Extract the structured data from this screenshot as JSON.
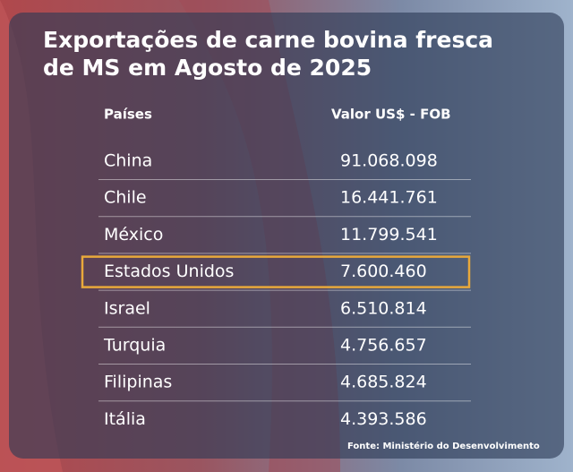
{
  "title": [
    "Exportações de carne bovina fresca",
    "de MS em Agosto de 2025"
  ],
  "table": {
    "header": [
      "Países",
      "Valor US$ - FOB"
    ],
    "rows": [
      [
        "China",
        "91.068.098"
      ],
      [
        "Chile",
        "16.441.761"
      ],
      [
        "México",
        "11.799.541"
      ],
      [
        "Estados Unidos",
        "7.600.460"
      ],
      [
        "Israel",
        "6.510.814"
      ],
      [
        "Turquia",
        "4.756.657"
      ],
      [
        "Filipinas",
        "4.685.824"
      ],
      [
        "Itália",
        "4.393.586"
      ]
    ],
    "highlight_row": 3
  },
  "source": "Fonte: Ministério do Desenvolvimento"
}
